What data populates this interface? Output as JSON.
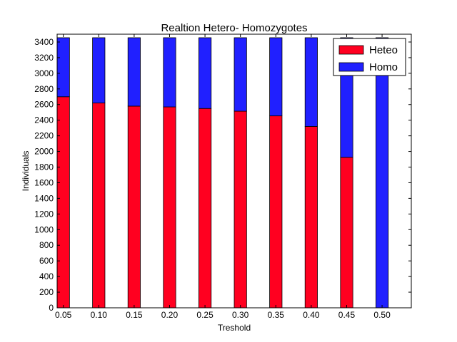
{
  "chart_data": {
    "type": "bar",
    "stacked": true,
    "title": "Realtion Hetero- Homozygotes",
    "xlabel": "Treshold",
    "ylabel": "Individuals",
    "categories": [
      "0.05",
      "0.10",
      "0.15",
      "0.20",
      "0.25",
      "0.30",
      "0.35",
      "0.40",
      "0.45",
      "0.50"
    ],
    "series": [
      {
        "name": "Heteo",
        "color": "#ff0020",
        "values": [
          2700,
          2620,
          2580,
          2570,
          2550,
          2515,
          2455,
          2320,
          1925,
          0
        ]
      },
      {
        "name": "Homo",
        "color": "#2020ff",
        "values": [
          755,
          835,
          875,
          885,
          905,
          940,
          1000,
          1135,
          1530,
          3455
        ]
      }
    ],
    "ylim": [
      0,
      3500
    ],
    "yticks": [
      0,
      200,
      400,
      600,
      800,
      1000,
      1200,
      1400,
      1600,
      1800,
      2000,
      2200,
      2400,
      2600,
      2800,
      3000,
      3200,
      3400
    ],
    "grid": false,
    "legend_position": "top-right"
  }
}
